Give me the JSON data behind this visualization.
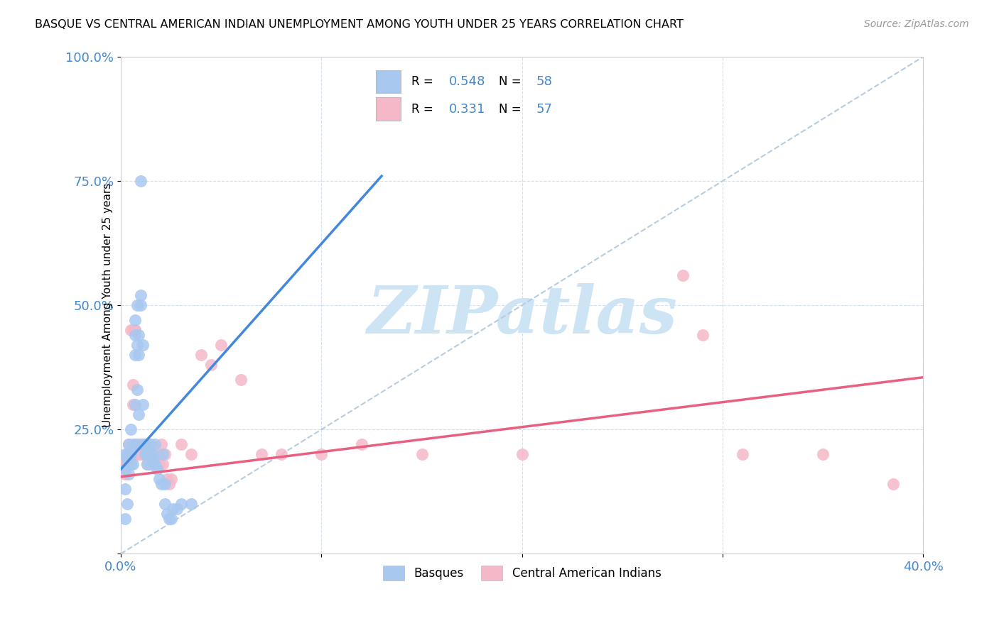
{
  "title": "BASQUE VS CENTRAL AMERICAN INDIAN UNEMPLOYMENT AMONG YOUTH UNDER 25 YEARS CORRELATION CHART",
  "source": "Source: ZipAtlas.com",
  "ylabel": "Unemployment Among Youth under 25 years",
  "xlim": [
    0,
    0.4
  ],
  "ylim": [
    0,
    1.0
  ],
  "blue_color": "#a8c8f0",
  "pink_color": "#f5b8c8",
  "blue_line_color": "#4488dd",
  "pink_line_color": "#e86080",
  "blue_R": 0.548,
  "blue_N": 58,
  "pink_R": 0.331,
  "pink_N": 57,
  "watermark": "ZIPatlas",
  "watermark_color": "#cce4f4",
  "blue_line": [
    [
      0.0,
      0.17
    ],
    [
      0.13,
      0.76
    ]
  ],
  "pink_line": [
    [
      0.0,
      0.155
    ],
    [
      0.4,
      0.355
    ]
  ],
  "diag_line": [
    [
      0.0,
      0.0
    ],
    [
      0.4,
      1.0
    ]
  ],
  "blue_scatter": [
    [
      0.002,
      0.17
    ],
    [
      0.002,
      0.2
    ],
    [
      0.002,
      0.13
    ],
    [
      0.002,
      0.07
    ],
    [
      0.003,
      0.19
    ],
    [
      0.003,
      0.1
    ],
    [
      0.004,
      0.2
    ],
    [
      0.004,
      0.16
    ],
    [
      0.004,
      0.22
    ],
    [
      0.005,
      0.18
    ],
    [
      0.005,
      0.2
    ],
    [
      0.005,
      0.25
    ],
    [
      0.006,
      0.22
    ],
    [
      0.006,
      0.18
    ],
    [
      0.007,
      0.4
    ],
    [
      0.007,
      0.44
    ],
    [
      0.007,
      0.47
    ],
    [
      0.007,
      0.3
    ],
    [
      0.008,
      0.5
    ],
    [
      0.008,
      0.42
    ],
    [
      0.008,
      0.33
    ],
    [
      0.008,
      0.22
    ],
    [
      0.009,
      0.44
    ],
    [
      0.009,
      0.4
    ],
    [
      0.009,
      0.28
    ],
    [
      0.01,
      0.75
    ],
    [
      0.01,
      0.52
    ],
    [
      0.01,
      0.5
    ],
    [
      0.011,
      0.42
    ],
    [
      0.011,
      0.3
    ],
    [
      0.011,
      0.22
    ],
    [
      0.012,
      0.2
    ],
    [
      0.012,
      0.22
    ],
    [
      0.013,
      0.22
    ],
    [
      0.013,
      0.2
    ],
    [
      0.013,
      0.18
    ],
    [
      0.014,
      0.2
    ],
    [
      0.014,
      0.22
    ],
    [
      0.015,
      0.2
    ],
    [
      0.015,
      0.22
    ],
    [
      0.015,
      0.18
    ],
    [
      0.016,
      0.2
    ],
    [
      0.016,
      0.19
    ],
    [
      0.017,
      0.22
    ],
    [
      0.017,
      0.18
    ],
    [
      0.018,
      0.17
    ],
    [
      0.019,
      0.15
    ],
    [
      0.02,
      0.14
    ],
    [
      0.021,
      0.2
    ],
    [
      0.022,
      0.14
    ],
    [
      0.022,
      0.1
    ],
    [
      0.023,
      0.08
    ],
    [
      0.024,
      0.07
    ],
    [
      0.025,
      0.07
    ],
    [
      0.026,
      0.09
    ],
    [
      0.028,
      0.09
    ],
    [
      0.03,
      0.1
    ],
    [
      0.035,
      0.1
    ]
  ],
  "pink_scatter": [
    [
      0.002,
      0.18
    ],
    [
      0.002,
      0.16
    ],
    [
      0.003,
      0.2
    ],
    [
      0.003,
      0.18
    ],
    [
      0.004,
      0.22
    ],
    [
      0.004,
      0.2
    ],
    [
      0.005,
      0.2
    ],
    [
      0.005,
      0.18
    ],
    [
      0.005,
      0.45
    ],
    [
      0.006,
      0.45
    ],
    [
      0.006,
      0.34
    ],
    [
      0.006,
      0.3
    ],
    [
      0.007,
      0.45
    ],
    [
      0.007,
      0.45
    ],
    [
      0.007,
      0.22
    ],
    [
      0.007,
      0.2
    ],
    [
      0.008,
      0.22
    ],
    [
      0.008,
      0.2
    ],
    [
      0.009,
      0.22
    ],
    [
      0.009,
      0.2
    ],
    [
      0.01,
      0.22
    ],
    [
      0.01,
      0.2
    ],
    [
      0.011,
      0.22
    ],
    [
      0.011,
      0.2
    ],
    [
      0.012,
      0.22
    ],
    [
      0.012,
      0.2
    ],
    [
      0.013,
      0.2
    ],
    [
      0.013,
      0.18
    ],
    [
      0.014,
      0.2
    ],
    [
      0.015,
      0.18
    ],
    [
      0.016,
      0.2
    ],
    [
      0.017,
      0.18
    ],
    [
      0.018,
      0.2
    ],
    [
      0.019,
      0.18
    ],
    [
      0.02,
      0.22
    ],
    [
      0.021,
      0.18
    ],
    [
      0.022,
      0.2
    ],
    [
      0.023,
      0.15
    ],
    [
      0.024,
      0.14
    ],
    [
      0.025,
      0.15
    ],
    [
      0.03,
      0.22
    ],
    [
      0.035,
      0.2
    ],
    [
      0.04,
      0.4
    ],
    [
      0.045,
      0.38
    ],
    [
      0.05,
      0.42
    ],
    [
      0.06,
      0.35
    ],
    [
      0.07,
      0.2
    ],
    [
      0.08,
      0.2
    ],
    [
      0.1,
      0.2
    ],
    [
      0.12,
      0.22
    ],
    [
      0.15,
      0.2
    ],
    [
      0.2,
      0.2
    ],
    [
      0.28,
      0.56
    ],
    [
      0.29,
      0.44
    ],
    [
      0.31,
      0.2
    ],
    [
      0.35,
      0.2
    ],
    [
      0.385,
      0.14
    ]
  ]
}
